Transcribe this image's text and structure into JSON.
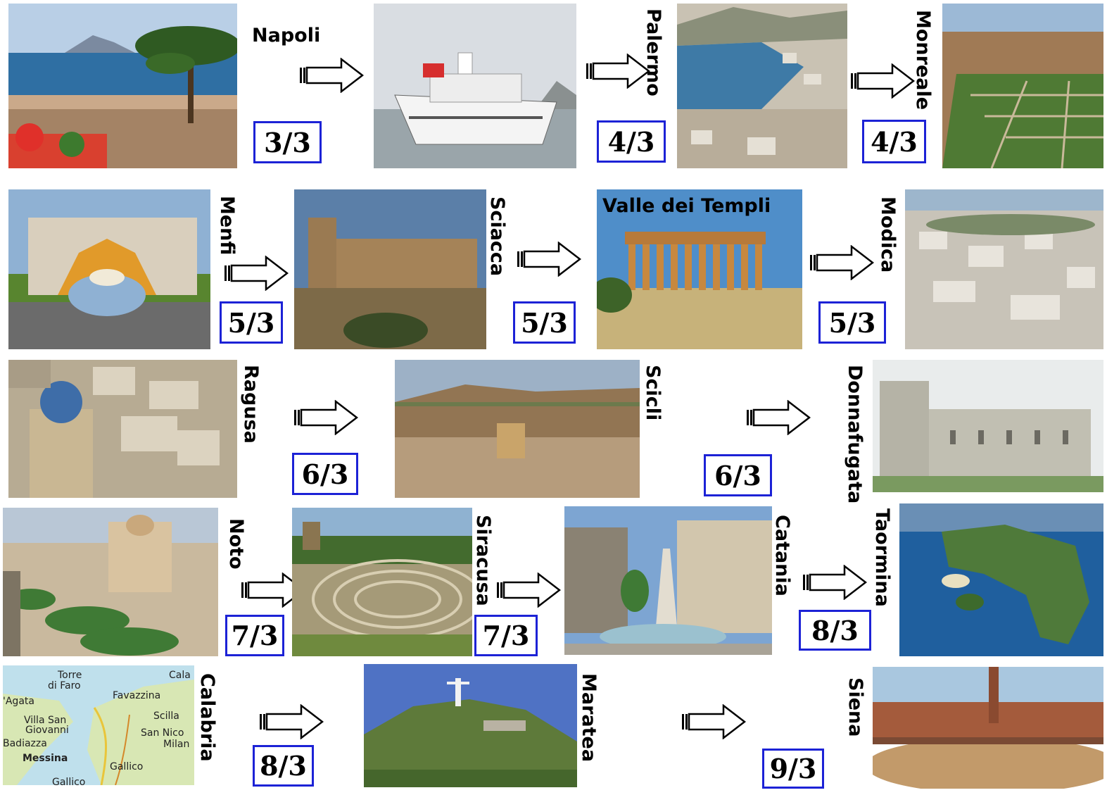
{
  "stops": {
    "napoli": "Napoli",
    "palermo": "Palermo",
    "monreale": "Monreale",
    "menfi": "Menfi",
    "sciacca": "Sciacca",
    "valle": "Valle dei Templi",
    "modica": "Modica",
    "ragusa": "Ragusa",
    "scicli": "Scicli",
    "donnafugata": "Donnafugata",
    "noto": "Noto",
    "siracusa": "Siracusa",
    "catania": "Catania",
    "taormina": "Taormina",
    "calabria": "Calabria",
    "maratea": "Maratea",
    "siena": "Siena"
  },
  "dates": {
    "d1": "3/3",
    "d2": "4/3",
    "d3": "4/3",
    "d4": "5/3",
    "d5": "5/3",
    "d6": "5/3",
    "d7": "6/3",
    "d8": "6/3",
    "d9": "7/3",
    "d10": "7/3",
    "d11": "8/3",
    "d12": "8/3",
    "d13": "9/3"
  },
  "map": {
    "torre": "Torre",
    "faro": "di Faro",
    "cala": "Cala",
    "agata": "'Agata",
    "favazzina": "Favazzina",
    "villa": "Villa San",
    "giovanni": "Giovanni",
    "scilla": "Scilla",
    "sannico": "San Nico",
    "badiazza": "Badiazza",
    "milan": "Milan",
    "messina": "Messina",
    "gallico": "Gallico",
    "gallico2": "Gallico"
  },
  "colors": {
    "date_border": "#1c22d6"
  }
}
